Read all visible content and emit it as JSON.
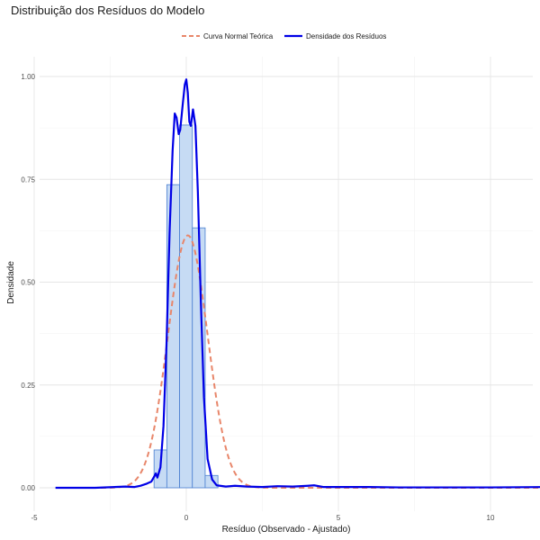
{
  "chart_data": {
    "type": "histogram+line",
    "title": "Distribuição dos Resíduos do Modelo",
    "xlabel": "Resíduo (Observado - Ajustado)",
    "ylabel": "Densidade",
    "xlim": [
      -5,
      12.5
    ],
    "ylim": [
      0,
      1.05
    ],
    "x_ticks": [
      -5,
      0,
      5,
      10
    ],
    "x_tick_labels": [
      "-5",
      "0",
      "5",
      "10"
    ],
    "y_ticks": [
      0,
      0.25,
      0.5,
      0.75,
      1.0
    ],
    "y_tick_labels": [
      "0.00",
      "0.25",
      "0.50",
      "0.75",
      "1.00"
    ],
    "grid": true,
    "legend_position": "top",
    "colors": {
      "hist_fill": "#c6dbf4",
      "hist_stroke": "#4a7fd0",
      "density": "#0000e6",
      "normal": "#e8866a"
    },
    "histogram": {
      "bin_width": 0.42,
      "bins": [
        {
          "x0": -1.06,
          "x1": -0.64,
          "density": 0.092
        },
        {
          "x0": -0.64,
          "x1": -0.22,
          "density": 0.737
        },
        {
          "x0": -0.22,
          "x1": 0.2,
          "density": 0.882
        },
        {
          "x0": 0.2,
          "x1": 0.62,
          "density": 0.632
        },
        {
          "x0": 0.62,
          "x1": 1.04,
          "density": 0.03
        }
      ]
    },
    "series": [
      {
        "name": "Curva Normal Teórica",
        "style": "dashed",
        "mean": 0.05,
        "sd": 0.65,
        "x_range": [
          -4.0,
          12.0
        ]
      },
      {
        "name": "Densidade dos Resíduos",
        "style": "solid",
        "points": [
          [
            -4.3,
            0.0
          ],
          [
            -3.0,
            0.0
          ],
          [
            -2.0,
            0.003
          ],
          [
            -1.7,
            0.002
          ],
          [
            -1.5,
            0.005
          ],
          [
            -1.3,
            0.01
          ],
          [
            -1.15,
            0.015
          ],
          [
            -1.05,
            0.028
          ],
          [
            -1.0,
            0.035
          ],
          [
            -0.95,
            0.025
          ],
          [
            -0.85,
            0.05
          ],
          [
            -0.75,
            0.15
          ],
          [
            -0.65,
            0.35
          ],
          [
            -0.55,
            0.62
          ],
          [
            -0.45,
            0.82
          ],
          [
            -0.38,
            0.91
          ],
          [
            -0.32,
            0.9
          ],
          [
            -0.25,
            0.86
          ],
          [
            -0.2,
            0.87
          ],
          [
            -0.12,
            0.93
          ],
          [
            -0.05,
            0.98
          ],
          [
            0.0,
            0.993
          ],
          [
            0.05,
            0.96
          ],
          [
            0.1,
            0.89
          ],
          [
            0.15,
            0.88
          ],
          [
            0.22,
            0.92
          ],
          [
            0.3,
            0.88
          ],
          [
            0.38,
            0.72
          ],
          [
            0.48,
            0.45
          ],
          [
            0.58,
            0.22
          ],
          [
            0.7,
            0.07
          ],
          [
            0.85,
            0.02
          ],
          [
            1.0,
            0.006
          ],
          [
            1.3,
            0.003
          ],
          [
            1.6,
            0.005
          ],
          [
            2.0,
            0.003
          ],
          [
            2.5,
            0.002
          ],
          [
            3.0,
            0.004
          ],
          [
            3.5,
            0.003
          ],
          [
            4.0,
            0.005
          ],
          [
            4.2,
            0.006
          ],
          [
            4.5,
            0.002
          ],
          [
            5.0,
            0.002
          ],
          [
            6.0,
            0.002
          ],
          [
            7.0,
            0.001
          ],
          [
            8.0,
            0.001
          ],
          [
            10.0,
            0.001
          ],
          [
            12.0,
            0.002
          ]
        ]
      }
    ]
  }
}
